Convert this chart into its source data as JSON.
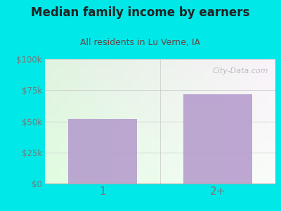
{
  "categories": [
    "1",
    "2+"
  ],
  "values": [
    52000,
    72000
  ],
  "bar_color": "#b399cc",
  "title": "Median family income by earners",
  "subtitle": "All residents in Lu Verne, IA",
  "title_color": "#222222",
  "subtitle_color": "#664444",
  "background_color": "#00e8e8",
  "plot_bg_left": "#d8eedb",
  "plot_bg_right": "#f0f8f0",
  "plot_bg_top": "#eaf5ec",
  "plot_bg_bottom": "#ffffff",
  "ylim": [
    0,
    100000
  ],
  "yticks": [
    0,
    25000,
    50000,
    75000,
    100000
  ],
  "ytick_labels": [
    "$0",
    "$25k",
    "$50k",
    "$75k",
    "$100k"
  ],
  "watermark": "City-Data.com",
  "grid_color": "#cccccc",
  "tick_label_color": "#777777"
}
